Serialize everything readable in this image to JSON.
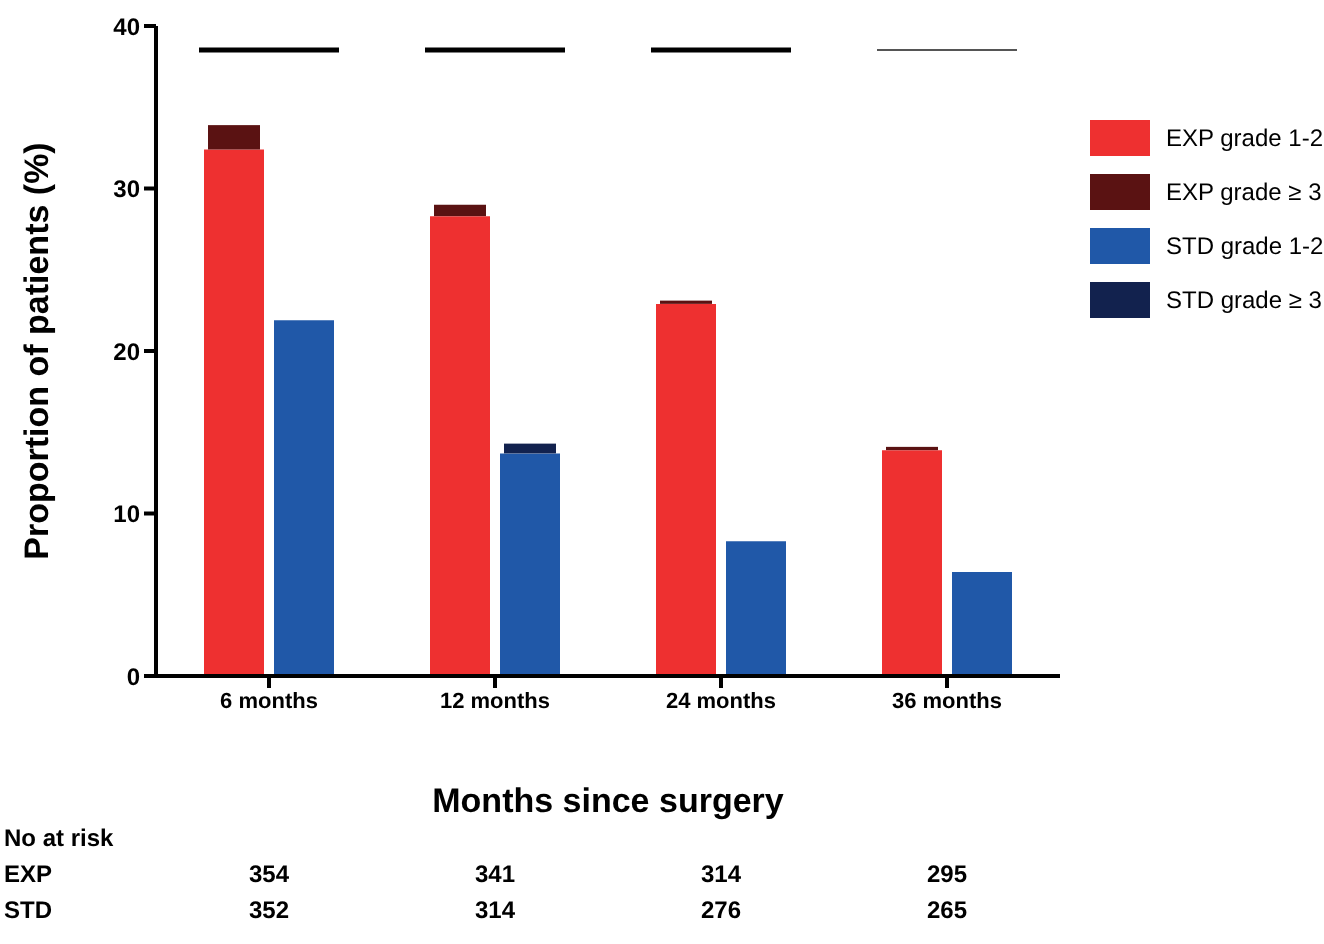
{
  "chart_data": {
    "type": "bar",
    "xlabel": "Months since surgery",
    "ylabel": "Proportion of patients (%)",
    "categories": [
      "6 months",
      "12 months",
      "24 months",
      "36 months"
    ],
    "series": [
      {
        "name": "EXP grade 1-2",
        "color": "#ee3030",
        "values": [
          32.4,
          28.3,
          22.9,
          13.9
        ]
      },
      {
        "name": "EXP grade ≥ 3",
        "color": "#5a1212",
        "values": [
          1.5,
          0.7,
          0.2,
          0.2
        ],
        "base": [
          32.4,
          28.3,
          22.9,
          13.9
        ]
      },
      {
        "name": "STD grade 1-2",
        "color": "#2058a8",
        "values": [
          21.9,
          13.7,
          8.3,
          6.4
        ]
      },
      {
        "name": "STD grade ≥ 3",
        "color": "#12224e",
        "values": [
          null,
          0.6,
          null,
          null
        ],
        "base": [
          null,
          13.7,
          null,
          null
        ]
      }
    ],
    "ylim": [
      0,
      40
    ],
    "yticks": [
      0,
      10,
      20,
      30,
      40
    ],
    "legend": "top right",
    "annotations": [
      "No at risk",
      "EXP",
      "354",
      "341",
      "314",
      "295",
      "STD",
      "352",
      "314",
      "276",
      "265"
    ]
  }
}
